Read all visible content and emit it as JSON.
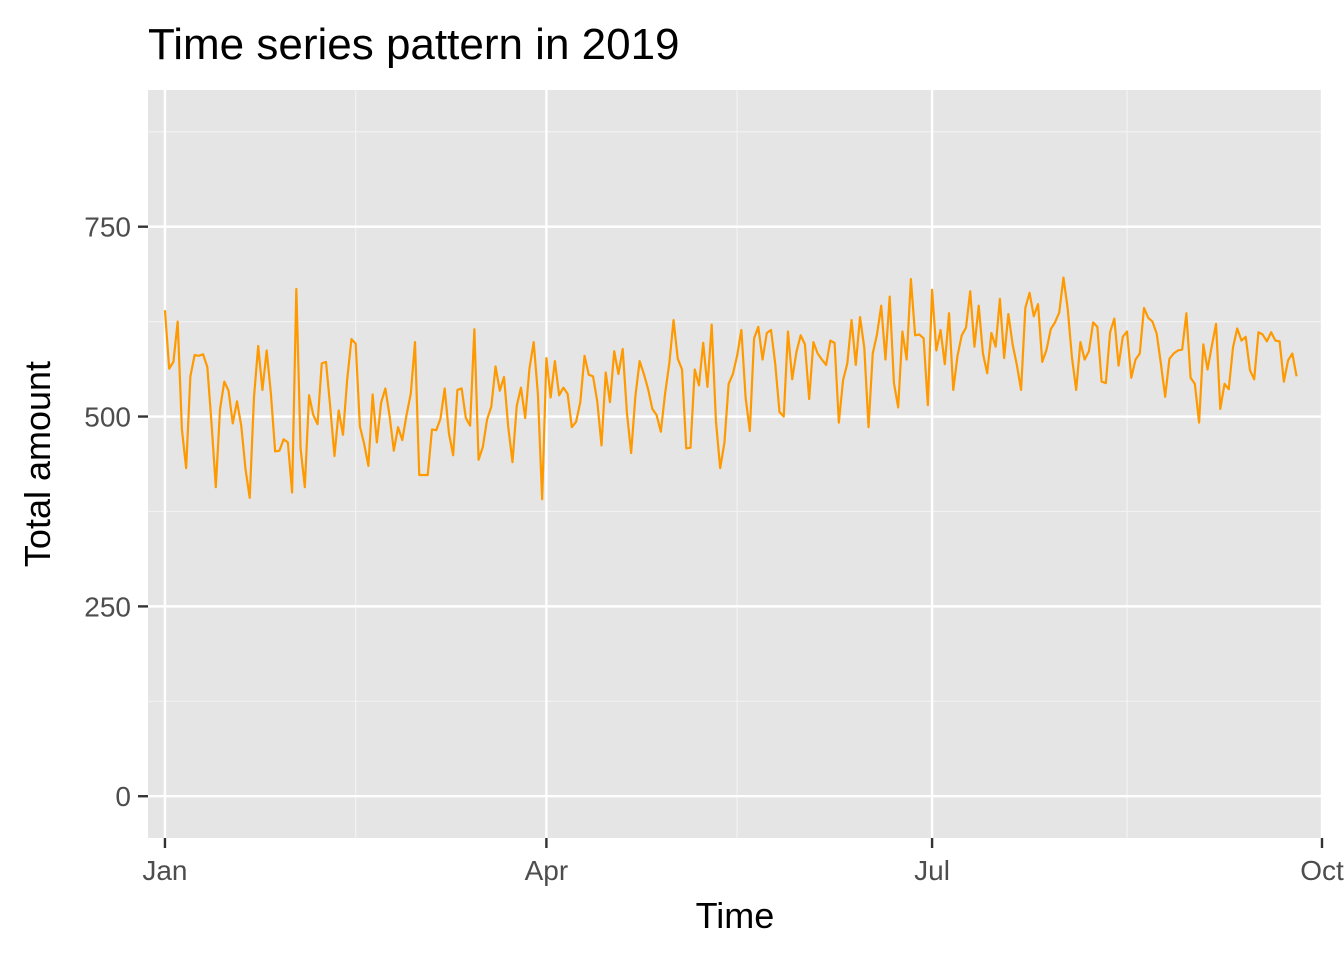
{
  "chart_data": {
    "type": "line",
    "title": "Time series pattern in 2019",
    "xlabel": "Time",
    "ylabel": "Total amount",
    "x_start": "2019-01-01",
    "x_end": "2019-09-26",
    "xlim": [
      "2018-12-28",
      "2019-10-01"
    ],
    "ylim": [
      -55,
      930
    ],
    "x_ticks": [
      {
        "date": "2019-01-01",
        "label": "Jan"
      },
      {
        "date": "2019-04-01",
        "label": "Apr"
      },
      {
        "date": "2019-07-01",
        "label": "Jul"
      },
      {
        "date": "2019-10-01",
        "label": "Oct"
      }
    ],
    "x_minor_ticks": [
      "2019-02-15",
      "2019-05-16",
      "2019-08-16"
    ],
    "y_ticks": [
      0,
      250,
      500,
      750
    ],
    "y_minor_ticks": [
      125,
      375,
      625,
      875
    ],
    "grid": true,
    "series": [
      {
        "color": "#FF9900",
        "values": [
          640,
          563,
          572,
          625,
          483,
          432,
          553,
          581,
          580,
          582,
          565,
          490,
          407,
          510,
          546,
          534,
          491,
          520,
          488,
          431,
          393,
          525,
          593,
          535,
          587,
          530,
          454,
          455,
          470,
          466,
          400,
          668,
          458,
          407,
          528,
          502,
          490,
          570,
          572,
          512,
          448,
          508,
          476,
          549,
          602,
          596,
          487,
          464,
          435,
          529,
          466,
          518,
          537,
          501,
          455,
          486,
          469,
          502,
          530,
          598,
          423,
          423,
          423,
          483,
          482,
          497,
          537,
          478,
          449,
          535,
          537,
          498,
          488,
          615,
          443,
          460,
          496,
          513,
          566,
          534,
          552,
          486,
          440,
          514,
          538,
          498,
          563,
          598,
          529,
          391,
          577,
          525,
          573,
          528,
          538,
          530,
          486,
          493,
          519,
          580,
          555,
          553,
          520,
          462,
          558,
          519,
          586,
          556,
          589,
          505,
          452,
          527,
          573,
          556,
          536,
          510,
          502,
          480,
          530,
          570,
          627,
          576,
          562,
          458,
          459,
          562,
          541,
          597,
          539,
          621,
          494,
          432,
          465,
          543,
          556,
          580,
          614,
          525,
          481,
          603,
          618,
          575,
          610,
          614,
          569,
          506,
          500,
          612,
          549,
          585,
          607,
          595,
          523,
          598,
          583,
          575,
          568,
          600,
          597,
          492,
          548,
          570,
          627,
          568,
          631,
          591,
          486,
          583,
          608,
          646,
          575,
          658,
          544,
          512,
          612,
          575,
          681,
          607,
          608,
          603,
          515,
          667,
          587,
          614,
          569,
          636,
          535,
          580,
          607,
          617,
          665,
          592,
          646,
          583,
          557,
          610,
          592,
          655,
          577,
          635,
          595,
          568,
          535,
          643,
          663,
          632,
          648,
          572,
          588,
          615,
          624,
          637,
          683,
          642,
          578,
          535,
          598,
          575,
          586,
          624,
          618,
          546,
          544,
          611,
          629,
          567,
          605,
          612,
          551,
          575,
          583,
          643,
          630,
          625,
          609,
          569,
          526,
          576,
          583,
          587,
          588,
          636,
          551,
          543,
          492,
          595,
          562,
          593,
          622,
          510,
          543,
          536,
          591,
          616,
          600,
          605,
          561,
          549,
          611,
          608,
          599,
          611,
          600,
          599,
          546,
          574,
          583,
          553
        ]
      }
    ]
  }
}
